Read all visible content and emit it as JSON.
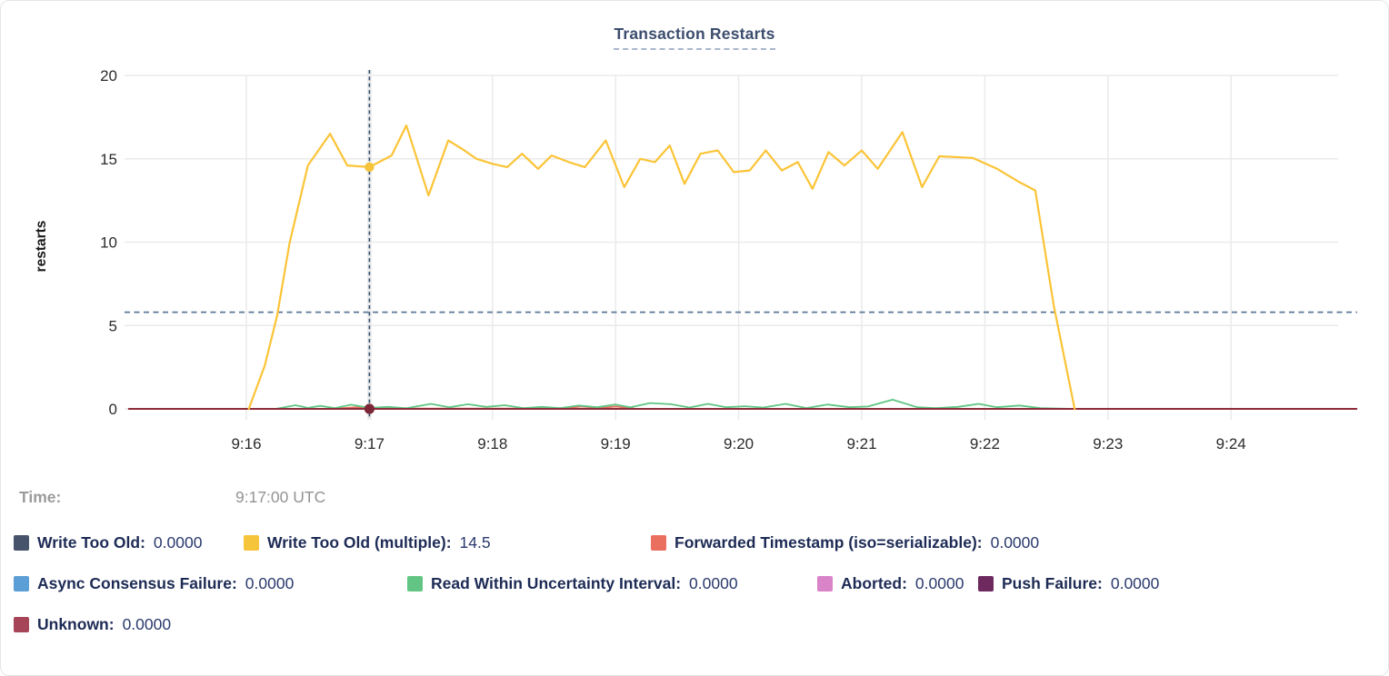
{
  "card": {
    "title": "Transaction Restarts"
  },
  "time_row": {
    "label": "Time:",
    "value": "9:17:00 UTC"
  },
  "legend": {
    "items": [
      {
        "label": "Write Too Old:",
        "value": "0.0000",
        "color": "#46536a"
      },
      {
        "label": "Write Too Old (multiple):",
        "value": "14.5",
        "color": "#f5c43a"
      },
      {
        "label": "Forwarded Timestamp (iso=serializable):",
        "value": "0.0000",
        "color": "#ea6f5f"
      },
      {
        "label": "Async Consensus Failure:",
        "value": "0.0000",
        "color": "#5c9fd6"
      },
      {
        "label": "Read Within Uncertainty Interval:",
        "value": "0.0000",
        "color": "#63c584"
      },
      {
        "label": "Aborted:",
        "value": "0.0000",
        "color": "#d983c9"
      },
      {
        "label": "Push Failure:",
        "value": "0.0000",
        "color": "#6e2a5e"
      },
      {
        "label": "Unknown:",
        "value": "0.0000",
        "color": "#a64458"
      }
    ]
  },
  "chart_data": {
    "type": "line",
    "title": "Transaction Restarts",
    "ylabel": "restarts",
    "xlabel": "",
    "ylim": [
      0,
      20
    ],
    "y_ticks": [
      0,
      5,
      10,
      15,
      20
    ],
    "x_ticks": [
      {
        "t": 0,
        "label": "9:16"
      },
      {
        "t": 1,
        "label": "9:17"
      },
      {
        "t": 2,
        "label": "9:18"
      },
      {
        "t": 3,
        "label": "9:19"
      },
      {
        "t": 4,
        "label": "9:20"
      },
      {
        "t": 5,
        "label": "9:21"
      },
      {
        "t": 6,
        "label": "9:22"
      },
      {
        "t": 7,
        "label": "9:23"
      },
      {
        "t": 8,
        "label": "9:24"
      }
    ],
    "grid": true,
    "legend_position": "bottom",
    "avg_rule_value": 5.8,
    "colors": {
      "grid": "#eaeaea",
      "hover_band": "#ececec",
      "avg_rule": "#5b7898",
      "crosshair": "#2e4e6e",
      "tick_text": "#2b2b2b",
      "axis_title_text": "#1a1a1a"
    },
    "hover": {
      "t": 1,
      "time_label": "9:17:00 UTC",
      "dots": [
        {
          "series": "Write Too Old (multiple)",
          "value": 14.5,
          "color": "#f5c43a",
          "r": 5.2
        },
        {
          "series": "Unknown",
          "value": 0,
          "color": "#7d2637",
          "r": 5.6
        }
      ]
    },
    "series": [
      {
        "name": "Forwarded Timestamp (iso=serializable)",
        "color": "#e96d5e",
        "width": 1.8,
        "points": [
          [
            0.7,
            0.01
          ],
          [
            0.9,
            0.1
          ],
          [
            1.05,
            0.02
          ],
          [
            2.55,
            0.02
          ],
          [
            2.72,
            0.14
          ],
          [
            2.88,
            0.05
          ],
          [
            3.0,
            0.14
          ],
          [
            3.15,
            0.02
          ]
        ]
      },
      {
        "name": "Read Within Uncertainty Interval",
        "color": "#5fc584",
        "width": 1.8,
        "points": [
          [
            0.25,
            0.02
          ],
          [
            0.4,
            0.22
          ],
          [
            0.5,
            0.06
          ],
          [
            0.6,
            0.18
          ],
          [
            0.72,
            0.05
          ],
          [
            0.85,
            0.25
          ],
          [
            1.0,
            0.06
          ],
          [
            1.15,
            0.12
          ],
          [
            1.3,
            0.04
          ],
          [
            1.5,
            0.3
          ],
          [
            1.65,
            0.1
          ],
          [
            1.8,
            0.28
          ],
          [
            1.95,
            0.12
          ],
          [
            2.1,
            0.22
          ],
          [
            2.25,
            0.05
          ],
          [
            2.4,
            0.12
          ],
          [
            2.55,
            0.05
          ],
          [
            2.7,
            0.2
          ],
          [
            2.85,
            0.1
          ],
          [
            3.0,
            0.26
          ],
          [
            3.12,
            0.1
          ],
          [
            3.28,
            0.35
          ],
          [
            3.45,
            0.28
          ],
          [
            3.6,
            0.08
          ],
          [
            3.75,
            0.3
          ],
          [
            3.9,
            0.1
          ],
          [
            4.05,
            0.16
          ],
          [
            4.2,
            0.08
          ],
          [
            4.38,
            0.3
          ],
          [
            4.55,
            0.05
          ],
          [
            4.72,
            0.26
          ],
          [
            4.9,
            0.1
          ],
          [
            5.05,
            0.14
          ],
          [
            5.25,
            0.55
          ],
          [
            5.45,
            0.1
          ],
          [
            5.6,
            0.05
          ],
          [
            5.78,
            0.12
          ],
          [
            5.95,
            0.3
          ],
          [
            6.1,
            0.1
          ],
          [
            6.28,
            0.2
          ],
          [
            6.45,
            0.05
          ],
          [
            6.6,
            0.02
          ],
          [
            6.73,
            0
          ]
        ]
      },
      {
        "name": "Unknown",
        "color": "#8e2b3b",
        "width": 2,
        "points": [
          [
            -0.955,
            0
          ],
          [
            9.02,
            0
          ]
        ]
      },
      {
        "name": "Write Too Old (multiple)",
        "color": "#fbc437",
        "width": 2.2,
        "points": [
          [
            0.02,
            0
          ],
          [
            0.15,
            2.6
          ],
          [
            0.25,
            5.6
          ],
          [
            0.35,
            9.9
          ],
          [
            0.5,
            14.6
          ],
          [
            0.68,
            16.5
          ],
          [
            0.82,
            14.6
          ],
          [
            1.0,
            14.5
          ],
          [
            1.18,
            15.2
          ],
          [
            1.3,
            17.0
          ],
          [
            1.48,
            12.8
          ],
          [
            1.64,
            16.1
          ],
          [
            1.75,
            15.6
          ],
          [
            1.87,
            15.0
          ],
          [
            2.0,
            14.7
          ],
          [
            2.12,
            14.5
          ],
          [
            2.24,
            15.3
          ],
          [
            2.37,
            14.4
          ],
          [
            2.48,
            15.2
          ],
          [
            2.62,
            14.8
          ],
          [
            2.75,
            14.5
          ],
          [
            2.92,
            16.1
          ],
          [
            3.07,
            13.3
          ],
          [
            3.2,
            15.0
          ],
          [
            3.32,
            14.8
          ],
          [
            3.44,
            15.8
          ],
          [
            3.56,
            13.5
          ],
          [
            3.69,
            15.3
          ],
          [
            3.83,
            15.5
          ],
          [
            3.96,
            14.2
          ],
          [
            4.09,
            14.3
          ],
          [
            4.22,
            15.5
          ],
          [
            4.35,
            14.3
          ],
          [
            4.48,
            14.8
          ],
          [
            4.6,
            13.2
          ],
          [
            4.73,
            15.4
          ],
          [
            4.86,
            14.6
          ],
          [
            5.0,
            15.5
          ],
          [
            5.13,
            14.4
          ],
          [
            5.33,
            16.6
          ],
          [
            5.49,
            13.3
          ],
          [
            5.63,
            15.15
          ],
          [
            5.9,
            15.05
          ],
          [
            6.1,
            14.4
          ],
          [
            6.28,
            13.6
          ],
          [
            6.41,
            13.1
          ],
          [
            6.56,
            6.2
          ],
          [
            6.73,
            0
          ]
        ]
      }
    ]
  }
}
